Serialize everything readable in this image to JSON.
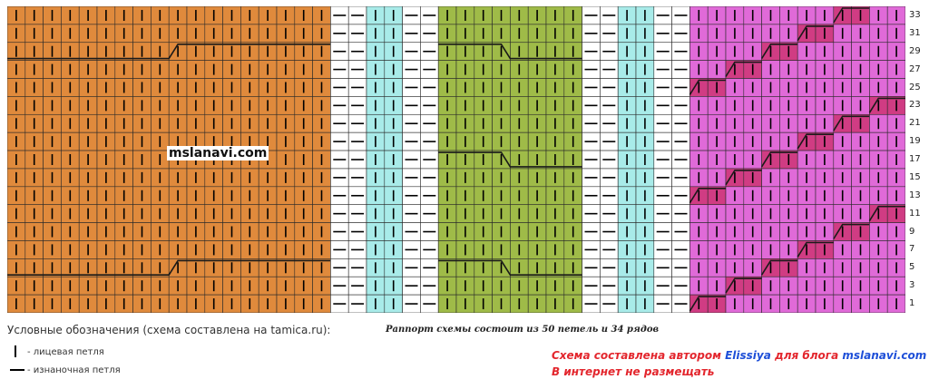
{
  "chart": {
    "watermark": "mslanavi.com",
    "row_labels": [
      "33",
      "31",
      "29",
      "27",
      "25",
      "23",
      "21",
      "19",
      "17",
      "15",
      "13",
      "11",
      "9",
      "7",
      "5",
      "3",
      "1"
    ],
    "colors": {
      "orange": "#e08a3c",
      "white": "#ffffff",
      "cyan": "#a8ebe9",
      "green": "#9fbb48",
      "pink": "#e06ad8",
      "magenta": "#d03c83",
      "grid": "#2a2a2a",
      "symbol": "#000000"
    }
  },
  "legend": {
    "title": "Условные обозначения (схема составлена на tamica.ru):",
    "knit_label": "- лицевая петля",
    "purl_label": "- изнаночная петля",
    "knit_icon": "vertical-bar",
    "purl_icon": "horizontal-dash"
  },
  "repeat_note": "Раппорт схемы состоит из 50 петель и 34 рядов",
  "credit": {
    "line1_prefix": "Схема составлена автором ",
    "line1_author": "Elissiya",
    "line1_mid": " для блога ",
    "line1_site": "mslanavi.com",
    "line2": "В интернет не размещать"
  }
}
